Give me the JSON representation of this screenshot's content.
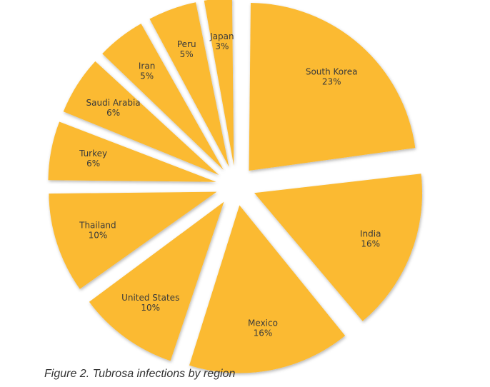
{
  "chart_data": {
    "type": "pie",
    "categories": [
      "South Korea",
      "India",
      "Mexico",
      "United States",
      "Thailand",
      "Turkey",
      "Saudi Arabia",
      "Iran",
      "Peru",
      "Japan"
    ],
    "values": [
      23,
      16,
      16,
      10,
      10,
      6,
      6,
      5,
      5,
      3
    ],
    "value_suffix": "%",
    "exploded": true,
    "slice_color": "#FBBA30",
    "title": "",
    "legend": "none"
  },
  "caption": "Figure 2. Tubrosa infections by region"
}
